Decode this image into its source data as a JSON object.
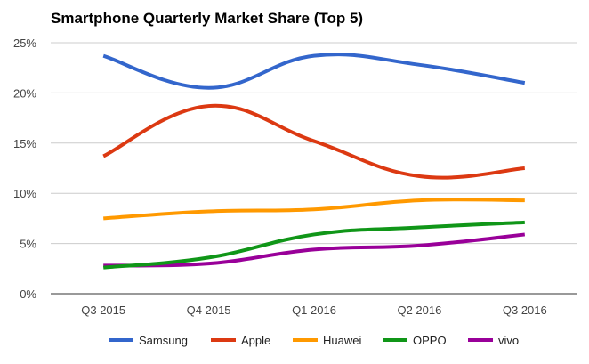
{
  "chart_data": {
    "type": "line",
    "title": "Smartphone Quarterly Market Share (Top 5)",
    "xlabel": "",
    "ylabel": "",
    "categories": [
      "Q3 2015",
      "Q4 2015",
      "Q1 2016",
      "Q2 2016",
      "Q3 2016"
    ],
    "ylim": [
      0,
      25
    ],
    "yticks": [
      0,
      5,
      10,
      15,
      20,
      25
    ],
    "ytick_labels": [
      "0%",
      "5%",
      "10%",
      "15%",
      "20%",
      "25%"
    ],
    "grid": true,
    "smooth": true,
    "legend_position": "bottom",
    "series": [
      {
        "name": "Samsung",
        "color": "#3366cc",
        "values": [
          23.7,
          20.5,
          23.7,
          22.8,
          21.0
        ]
      },
      {
        "name": "Apple",
        "color": "#dc3912",
        "values": [
          13.7,
          18.7,
          15.2,
          11.7,
          12.5
        ]
      },
      {
        "name": "Huawei",
        "color": "#ff9900",
        "values": [
          7.5,
          8.2,
          8.4,
          9.3,
          9.3
        ]
      },
      {
        "name": "OPPO",
        "color": "#109618",
        "values": [
          2.6,
          3.6,
          5.9,
          6.6,
          7.1
        ]
      },
      {
        "name": "vivo",
        "color": "#990099",
        "values": [
          2.8,
          3.0,
          4.4,
          4.8,
          5.9
        ]
      }
    ]
  }
}
